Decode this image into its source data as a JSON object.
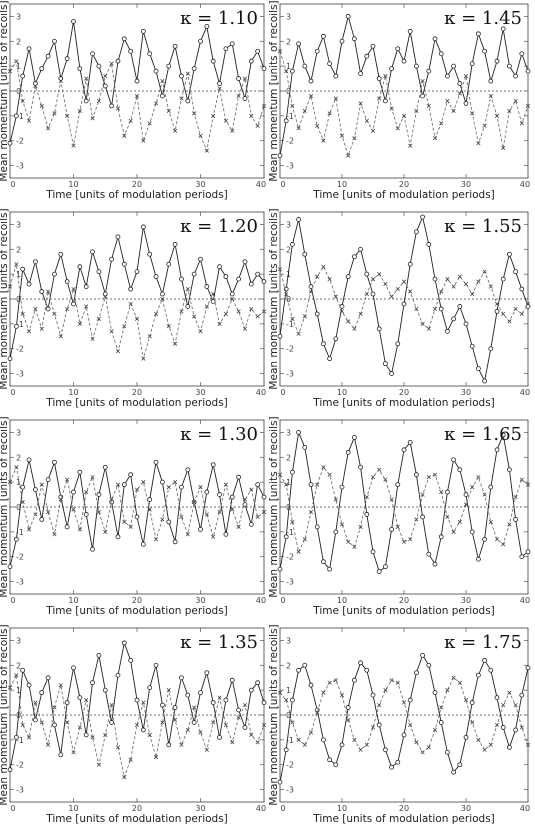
{
  "figure": {
    "xlabel": "Time [units of modulation periods]",
    "ylabel": "Mean momentum [units of recoils]"
  },
  "chart_data": [
    {
      "type": "line",
      "kappa_label": "κ = 1.10",
      "xlim": [
        0,
        40
      ],
      "ylim": [
        -3.5,
        3.5
      ],
      "x_ticks": [
        0,
        10,
        20,
        30,
        40
      ],
      "y_ticks": [
        -3,
        -2,
        -1,
        0,
        1,
        2,
        3
      ],
      "xlabel": "Time [units of modulation periods]",
      "ylabel": "Mean momentum [units of recoils]",
      "series": [
        {
          "style": "solid",
          "values": [
            -2.1,
            -1.0,
            0.6,
            1.7,
            0.3,
            0.9,
            1.4,
            2.0,
            0.5,
            1.3,
            2.8,
            0.9,
            -0.4,
            1.5,
            1.0,
            0.2,
            -0.6,
            1.2,
            2.1,
            1.6,
            0.4,
            2.4,
            1.5,
            0.8,
            -0.2,
            1.0,
            1.8,
            0.6,
            -0.4,
            0.9,
            2.0,
            2.6,
            1.2,
            0.3,
            1.7,
            1.9,
            0.5,
            -0.3,
            1.2,
            1.6,
            0.9
          ]
        },
        {
          "style": "dashed",
          "values": [
            0.8,
            1.2,
            -0.4,
            -1.2,
            0.2,
            -0.6,
            -1.5,
            -0.9,
            0.4,
            -1.0,
            -2.2,
            -0.8,
            0.5,
            -1.1,
            -0.4,
            0.6,
            1.1,
            -0.7,
            -1.8,
            -1.2,
            -0.2,
            -2.0,
            -1.3,
            -0.5,
            0.4,
            -0.8,
            -1.6,
            -0.3,
            0.7,
            -0.9,
            -1.8,
            -2.4,
            -1.0,
            0.1,
            -1.2,
            -1.6,
            -0.2,
            0.5,
            -1.0,
            -1.4,
            -0.6
          ]
        }
      ]
    },
    {
      "type": "line",
      "kappa_label": "κ = 1.45",
      "xlim": [
        0,
        40
      ],
      "ylim": [
        -3.5,
        3.5
      ],
      "x_ticks": [
        0,
        10,
        20,
        30,
        40
      ],
      "y_ticks": [
        -3,
        -2,
        -1,
        0,
        1,
        2,
        3
      ],
      "xlabel": "Time [units of modulation periods]",
      "ylabel": "Mean momentum [units of recoils]",
      "series": [
        {
          "style": "solid",
          "values": [
            -2.6,
            -1.2,
            0.8,
            1.9,
            1.0,
            0.4,
            1.6,
            2.2,
            1.1,
            0.6,
            2.0,
            3.0,
            2.1,
            0.7,
            1.4,
            1.8,
            0.5,
            -0.4,
            0.9,
            1.7,
            1.2,
            2.4,
            1.0,
            -0.2,
            0.8,
            2.1,
            1.5,
            0.6,
            1.0,
            0.3,
            -0.5,
            1.1,
            2.3,
            1.6,
            0.4,
            1.2,
            2.5,
            1.0,
            0.6,
            1.5,
            0.8
          ]
        },
        {
          "style": "dashed",
          "values": [
            1.6,
            0.8,
            -0.6,
            -1.5,
            -0.8,
            -0.2,
            -1.4,
            -2.0,
            -0.9,
            -0.3,
            -1.8,
            -2.6,
            -1.9,
            -0.5,
            -1.2,
            -1.6,
            -0.3,
            0.6,
            -0.7,
            -1.5,
            -1.0,
            -2.2,
            -0.8,
            0.4,
            -0.6,
            -1.9,
            -1.3,
            -0.4,
            -0.8,
            -0.1,
            0.6,
            -0.9,
            -2.1,
            -1.4,
            -0.2,
            -1.0,
            -2.3,
            -0.8,
            -0.4,
            -1.3,
            -0.6
          ]
        }
      ]
    },
    {
      "type": "line",
      "kappa_label": "κ = 1.20",
      "xlim": [
        0,
        40
      ],
      "ylim": [
        -3.5,
        3.5
      ],
      "x_ticks": [
        0,
        10,
        20,
        30,
        40
      ],
      "y_ticks": [
        -3,
        -2,
        -1,
        0,
        1,
        2,
        3
      ],
      "xlabel": "Time [units of modulation periods]",
      "ylabel": "Mean momentum [units of recoils]",
      "series": [
        {
          "style": "solid",
          "values": [
            -2.4,
            -1.1,
            1.2,
            0.6,
            1.5,
            0.3,
            -0.4,
            1.0,
            1.8,
            0.7,
            -0.2,
            1.3,
            0.5,
            1.9,
            1.1,
            0.2,
            1.6,
            2.5,
            1.4,
            0.4,
            1.1,
            2.9,
            1.8,
            0.9,
            0.2,
            1.4,
            2.2,
            0.8,
            -0.3,
            1.0,
            1.6,
            0.5,
            -0.1,
            1.3,
            0.9,
            0.2,
            0.8,
            1.5,
            0.6,
            1.0,
            0.7
          ]
        },
        {
          "style": "dashed",
          "values": [
            0.5,
            1.4,
            -0.6,
            -1.3,
            -0.4,
            -1.2,
            0.3,
            -0.6,
            -1.5,
            -0.4,
            0.4,
            -1.0,
            -0.3,
            -1.6,
            -0.8,
            0.1,
            -1.3,
            -2.1,
            -1.1,
            -0.2,
            -0.8,
            -2.4,
            -1.5,
            -0.6,
            0.0,
            -1.1,
            -1.8,
            -0.5,
            0.4,
            -0.7,
            -1.3,
            -0.3,
            0.2,
            -1.0,
            -0.6,
            0.0,
            -0.5,
            -1.2,
            -0.4,
            -0.7,
            -0.5
          ]
        }
      ]
    },
    {
      "type": "line",
      "kappa_label": "κ = 1.55",
      "xlim": [
        0,
        40
      ],
      "ylim": [
        -3.5,
        3.5
      ],
      "x_ticks": [
        0,
        10,
        20,
        30,
        40
      ],
      "y_ticks": [
        -3,
        -2,
        -1,
        0,
        1,
        2,
        3
      ],
      "xlabel": "Time [units of modulation periods]",
      "ylabel": "Mean momentum [units of recoils]",
      "series": [
        {
          "style": "solid",
          "values": [
            -1.5,
            0.4,
            2.2,
            3.2,
            1.8,
            0.5,
            -0.6,
            -1.8,
            -2.4,
            -1.6,
            -0.3,
            0.9,
            1.7,
            2.0,
            1.0,
            0.2,
            -1.2,
            -2.6,
            -3.0,
            -1.8,
            -0.2,
            1.4,
            2.7,
            3.3,
            2.2,
            0.8,
            -0.4,
            -1.3,
            -0.8,
            -0.3,
            -1.0,
            -1.9,
            -2.8,
            -3.3,
            -2.0,
            -0.5,
            0.8,
            1.8,
            1.1,
            0.4,
            -0.3
          ]
        },
        {
          "style": "dashed",
          "values": [
            1.2,
            0.2,
            -0.8,
            -1.4,
            -0.7,
            0.3,
            0.9,
            1.3,
            0.8,
            0.1,
            -0.5,
            -0.9,
            -1.2,
            -0.6,
            0.2,
            0.8,
            1.0,
            0.6,
            0.1,
            0.4,
            0.7,
            0.3,
            -0.4,
            -1.0,
            -1.2,
            -0.4,
            0.3,
            0.8,
            0.5,
            0.9,
            0.6,
            0.2,
            0.7,
            1.1,
            0.5,
            -0.2,
            -0.6,
            -0.9,
            -0.4,
            -0.6,
            -0.2
          ]
        }
      ]
    },
    {
      "type": "line",
      "kappa_label": "κ = 1.30",
      "xlim": [
        0,
        40
      ],
      "ylim": [
        -3.5,
        3.5
      ],
      "x_ticks": [
        0,
        10,
        20,
        30,
        40
      ],
      "y_ticks": [
        -3,
        -2,
        -1,
        0,
        1,
        2,
        3
      ],
      "xlabel": "Time [units of modulation periods]",
      "ylabel": "Mean momentum [units of recoils]",
      "series": [
        {
          "style": "solid",
          "values": [
            -2.4,
            -1.3,
            0.8,
            1.9,
            0.7,
            -0.5,
            1.1,
            1.8,
            0.4,
            -0.8,
            0.6,
            1.4,
            -0.3,
            -1.7,
            0.5,
            1.6,
            0.2,
            -1.2,
            0.9,
            1.3,
            -0.4,
            -1.5,
            0.3,
            1.8,
            1.0,
            -0.6,
            -1.4,
            0.8,
            1.5,
            0.2,
            -0.9,
            0.6,
            1.7,
            0.5,
            -1.1,
            0.4,
            1.2,
            0.1,
            -0.7,
            0.9,
            0.4
          ]
        },
        {
          "style": "dashed",
          "values": [
            1.0,
            1.6,
            0.2,
            -0.9,
            -0.3,
            0.9,
            -0.2,
            -1.1,
            0.3,
            1.1,
            -0.1,
            -0.9,
            0.6,
            1.2,
            -0.2,
            -1.0,
            0.3,
            0.9,
            -0.6,
            -0.8,
            0.7,
            1.0,
            -0.1,
            -1.3,
            -0.5,
            0.8,
            1.0,
            -0.4,
            -1.1,
            0.2,
            0.8,
            -0.3,
            -1.2,
            -0.2,
            0.9,
            -0.1,
            -0.8,
            0.3,
            0.7,
            -0.4,
            -0.2
          ]
        }
      ]
    },
    {
      "type": "line",
      "kappa_label": "κ = 1.65",
      "xlim": [
        0,
        40
      ],
      "ylim": [
        -3.5,
        3.5
      ],
      "x_ticks": [
        0,
        10,
        20,
        30,
        40
      ],
      "y_ticks": [
        -3,
        -2,
        -1,
        0,
        1,
        2,
        3
      ],
      "xlabel": "Time [units of modulation periods]",
      "ylabel": "Mean momentum [units of recoils]",
      "series": [
        {
          "style": "solid",
          "values": [
            -2.5,
            -1.2,
            1.4,
            3.0,
            2.4,
            0.9,
            -0.8,
            -2.2,
            -2.5,
            -1.0,
            0.8,
            2.2,
            2.8,
            1.6,
            -0.3,
            -1.8,
            -2.6,
            -2.4,
            -0.9,
            0.9,
            2.3,
            2.6,
            1.3,
            -0.4,
            -1.9,
            -2.3,
            -1.2,
            0.6,
            1.9,
            1.5,
            0.5,
            -1.0,
            -2.1,
            -1.3,
            0.8,
            2.3,
            2.9,
            1.5,
            -0.5,
            -2.0,
            -1.8
          ]
        },
        {
          "style": "dashed",
          "values": [
            1.3,
            0.9,
            -0.6,
            -1.8,
            -1.3,
            -0.2,
            0.9,
            1.6,
            1.3,
            0.3,
            -0.7,
            -1.4,
            -1.6,
            -0.8,
            0.4,
            1.2,
            1.5,
            1.1,
            0.3,
            -0.8,
            -1.4,
            -1.3,
            -0.5,
            0.5,
            1.2,
            1.3,
            0.6,
            -0.4,
            -1.0,
            -0.6,
            0.1,
            0.8,
            1.2,
            0.5,
            -0.6,
            -1.3,
            -1.5,
            -0.7,
            0.4,
            1.1,
            0.9
          ]
        }
      ]
    },
    {
      "type": "line",
      "kappa_label": "κ = 1.35",
      "xlim": [
        0,
        40
      ],
      "ylim": [
        -3.5,
        3.5
      ],
      "x_ticks": [
        0,
        10,
        20,
        30,
        40
      ],
      "y_ticks": [
        -3,
        -2,
        -1,
        0,
        1,
        2,
        3
      ],
      "xlabel": "Time [units of modulation periods]",
      "ylabel": "Mean momentum [units of recoils]",
      "series": [
        {
          "style": "solid",
          "values": [
            -2.2,
            -0.9,
            1.8,
            1.2,
            -0.2,
            0.9,
            1.5,
            -0.4,
            -1.6,
            0.5,
            1.9,
            0.7,
            -0.8,
            1.3,
            2.4,
            1.0,
            -0.3,
            1.6,
            2.9,
            2.2,
            0.6,
            -0.6,
            1.1,
            2.0,
            0.4,
            -1.2,
            0.3,
            1.5,
            0.8,
            -0.3,
            0.9,
            1.7,
            0.5,
            -0.9,
            0.6,
            1.4,
            0.2,
            -0.5,
            1.0,
            1.3,
            0.5
          ]
        },
        {
          "style": "dashed",
          "values": [
            1.1,
            1.6,
            -0.4,
            -0.9,
            0.5,
            -0.3,
            -1.2,
            0.3,
            1.2,
            -0.3,
            -1.5,
            -0.5,
            0.6,
            -0.9,
            -2.0,
            -0.8,
            0.4,
            -1.3,
            -2.5,
            -1.8,
            -0.4,
            0.5,
            -0.8,
            -1.7,
            -0.3,
            1.0,
            -0.2,
            -1.2,
            -0.6,
            0.3,
            -0.7,
            -1.4,
            -0.3,
            0.7,
            -0.4,
            -1.1,
            -0.1,
            0.4,
            -0.8,
            -1.1,
            -0.4
          ]
        }
      ]
    },
    {
      "type": "line",
      "kappa_label": "κ = 1.75",
      "xlim": [
        0,
        40
      ],
      "ylim": [
        -3.5,
        3.5
      ],
      "x_ticks": [
        0,
        10,
        20,
        30,
        40
      ],
      "y_ticks": [
        -3,
        -2,
        -1,
        0,
        1,
        2,
        3
      ],
      "xlabel": "Time [units of modulation periods]",
      "ylabel": "Mean momentum [units of recoils]",
      "series": [
        {
          "style": "solid",
          "values": [
            -2.7,
            -1.4,
            0.6,
            1.8,
            2.0,
            1.2,
            0.2,
            -1.0,
            -1.8,
            -2.0,
            -1.2,
            0.3,
            1.4,
            2.1,
            1.8,
            0.8,
            -0.4,
            -1.4,
            -2.1,
            -1.9,
            -0.8,
            0.6,
            1.7,
            2.4,
            2.0,
            0.9,
            -0.3,
            -1.5,
            -2.3,
            -2.0,
            -0.9,
            0.5,
            1.6,
            2.2,
            1.8,
            0.7,
            -0.5,
            -1.3,
            -0.6,
            0.8,
            1.9
          ]
        },
        {
          "style": "dashed",
          "values": [
            0.9,
            0.6,
            -0.3,
            -1.0,
            -1.2,
            -0.7,
            0.1,
            0.9,
            1.3,
            1.4,
            0.8,
            -0.2,
            -1.0,
            -1.4,
            -1.2,
            -0.5,
            0.4,
            1.0,
            1.4,
            1.3,
            0.5,
            -0.4,
            -1.1,
            -1.5,
            -1.3,
            -0.6,
            0.3,
            1.0,
            1.5,
            1.3,
            0.6,
            -0.3,
            -1.0,
            -1.4,
            -1.2,
            -0.4,
            0.4,
            0.9,
            0.4,
            -0.5,
            -1.2
          ]
        }
      ]
    }
  ]
}
